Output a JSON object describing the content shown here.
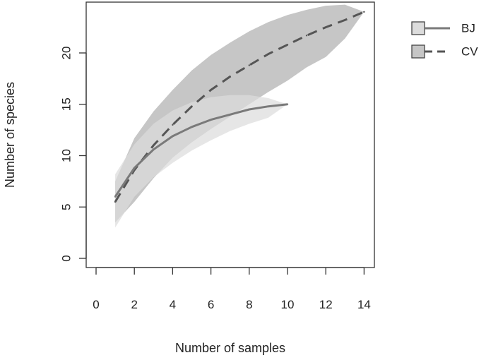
{
  "chart_data": {
    "type": "line",
    "title": "",
    "xlabel": "Number of samples",
    "ylabel": "Number of species",
    "xlim": [
      0,
      14.5
    ],
    "ylim": [
      -0.5,
      25
    ],
    "xticks": [
      0,
      2,
      4,
      6,
      8,
      10,
      12,
      14
    ],
    "yticks": [
      0,
      5,
      10,
      15,
      20
    ],
    "grid": false,
    "legend_position": "top-right, outside plot",
    "series": [
      {
        "name": "CV",
        "line_style": "dashed",
        "line_color": "#555555",
        "band_color": "#c6c6c6",
        "x": [
          1,
          2,
          3,
          4,
          5,
          6,
          7,
          8,
          9,
          10,
          11,
          12,
          13,
          14
        ],
        "values": [
          5.5,
          8.6,
          11.0,
          13.0,
          14.8,
          16.4,
          17.7,
          18.8,
          19.9,
          20.8,
          21.7,
          22.5,
          23.2,
          24.0
        ],
        "lower": [
          3.5,
          5.5,
          7.8,
          9.8,
          11.3,
          12.6,
          13.8,
          15.0,
          16.2,
          17.3,
          18.6,
          19.6,
          21.4,
          24.0
        ],
        "upper": [
          7.5,
          11.7,
          14.3,
          16.4,
          18.3,
          19.8,
          21.0,
          22.1,
          23.0,
          23.7,
          24.2,
          24.6,
          24.7,
          24.0
        ]
      },
      {
        "name": "BJ",
        "line_style": "solid",
        "line_color": "#7a7a7a",
        "band_color": "#dcdcdc",
        "x": [
          1,
          2,
          3,
          4,
          5,
          6,
          7,
          8,
          9,
          10
        ],
        "values": [
          6.0,
          8.8,
          10.6,
          11.9,
          12.8,
          13.5,
          14.0,
          14.5,
          14.8,
          15.0
        ],
        "lower": [
          3.0,
          6.0,
          7.9,
          9.3,
          10.5,
          11.5,
          12.4,
          13.1,
          13.7,
          15.0
        ],
        "upper": [
          8.2,
          11.1,
          13.1,
          14.4,
          15.2,
          15.7,
          15.9,
          15.9,
          15.6,
          15.0
        ]
      }
    ]
  }
}
